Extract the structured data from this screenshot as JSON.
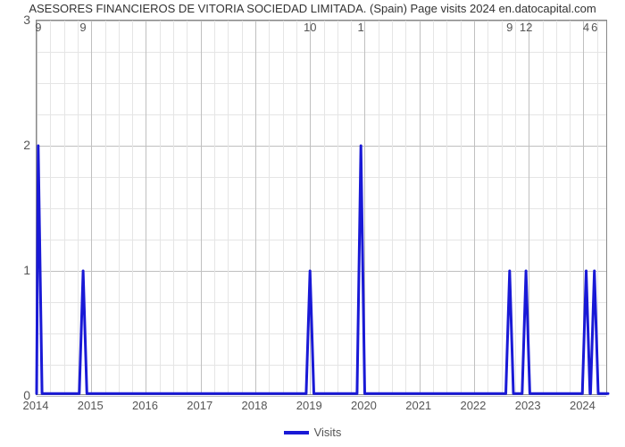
{
  "chart": {
    "type": "line",
    "title": "ASESORES FINANCIEROS DE VITORIA SOCIEDAD LIMITADA. (Spain) Page visits 2024 en.datocapital.com",
    "title_fontsize": 13,
    "title_color": "#333333",
    "background_color": "#ffffff",
    "plot_border_color": "#888888",
    "grid_major_color": "#c0c0c0",
    "grid_minor_color": "#e5e5e5",
    "line_color": "#1919d6",
    "line_width": 3,
    "fill_opacity": 0,
    "x_axis": {
      "label_fontsize": 13,
      "label_color": "#555555",
      "minor_per_major": 4,
      "ticks": [
        "2014",
        "2015",
        "2016",
        "2017",
        "2018",
        "2019",
        "2020",
        "2021",
        "2022",
        "2023",
        "2024"
      ]
    },
    "y_axis": {
      "label_fontsize": 14,
      "label_color": "#555555",
      "minor_per_major": 4,
      "ylim": [
        0,
        3
      ],
      "ticks": [
        0,
        1,
        2,
        3
      ]
    },
    "series": {
      "name": "Visits",
      "spikes": [
        {
          "x": 0.03,
          "y": 2,
          "label": "9"
        },
        {
          "x": 0.85,
          "y": 1,
          "label": "9"
        },
        {
          "x": 5.0,
          "y": 1,
          "label": "10"
        },
        {
          "x": 5.93,
          "y": 2,
          "label": "1"
        },
        {
          "x": 8.65,
          "y": 1,
          "label": "9"
        },
        {
          "x": 8.95,
          "y": 1,
          "label": "12"
        },
        {
          "x": 10.05,
          "y": 1,
          "label": "4"
        },
        {
          "x": 10.2,
          "y": 1,
          "label": "6"
        }
      ],
      "spike_halfwidth": 0.07,
      "baseline_y": 0.02
    },
    "legend": {
      "label": "Visits",
      "color": "#1919d6",
      "fontsize": 13
    }
  }
}
